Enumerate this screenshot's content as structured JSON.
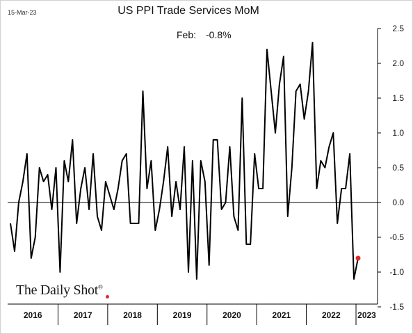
{
  "header": {
    "date": "15-Mar-23",
    "title": "US PPI Trade Services MoM"
  },
  "annotation": {
    "label": "Feb:",
    "value": "-0.8%"
  },
  "logo": {
    "text": "The Daily Shot",
    "mark": "®"
  },
  "colors": {
    "line": "#000000",
    "highlight": "#e0292b",
    "grid": "#000000"
  },
  "chart_data": {
    "type": "line",
    "title": "US PPI Trade Services MoM",
    "xlabel": "",
    "ylabel": "",
    "ylim": [
      -1.5,
      2.5
    ],
    "yticks": [
      2.5,
      2.0,
      1.5,
      1.0,
      0.5,
      0.0,
      -0.5,
      -1.0,
      -1.5
    ],
    "ytick_labels": [
      "2.5",
      "2.0",
      "1.5",
      "1.0",
      "0.5",
      "0.0",
      "-0.5",
      "-1.0",
      "-1.5"
    ],
    "year_labels": [
      "2016",
      "2017",
      "2018",
      "2019",
      "2020",
      "2021",
      "2022",
      "2023"
    ],
    "grid": false,
    "zero_line": true,
    "last_point_highlight": true,
    "series": [
      {
        "values": [
          -0.3,
          -0.7,
          0.0,
          0.3,
          0.7,
          -0.8,
          -0.5,
          0.5,
          0.3,
          0.4,
          -0.1,
          0.5,
          -1.0,
          0.6,
          0.3,
          0.9,
          -0.3,
          0.2,
          0.5,
          -0.1,
          0.7,
          -0.2,
          -0.4,
          0.3,
          0.1,
          -0.1,
          0.2,
          0.6,
          0.7,
          -0.3,
          -0.3,
          -0.3,
          1.6,
          0.2,
          0.6,
          -0.4,
          -0.1,
          0.3,
          0.8,
          -0.2,
          0.3,
          -0.1,
          0.8,
          -1.0,
          0.6,
          -1.1,
          0.6,
          0.3,
          -0.9,
          0.9,
          0.9,
          -0.1,
          0.0,
          0.8,
          -0.2,
          -0.4,
          1.5,
          -0.6,
          -0.6,
          0.7,
          0.2,
          0.2,
          2.2,
          1.6,
          1.0,
          1.7,
          2.1,
          -0.2,
          0.5,
          1.6,
          1.7,
          1.2,
          1.6,
          2.3,
          0.2,
          0.6,
          0.5,
          0.8,
          1.0,
          -0.3,
          0.2,
          0.2,
          0.7,
          -1.1,
          -0.8
        ]
      }
    ]
  }
}
